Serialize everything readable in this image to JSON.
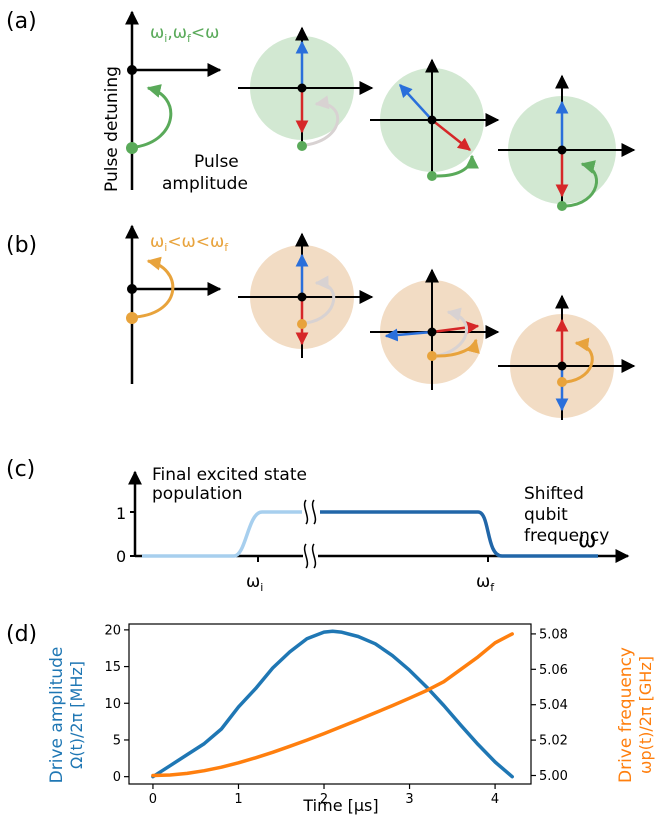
{
  "panels": {
    "a": {
      "label": "(a)",
      "condition": {
        "w1": "ω",
        "s1": "i",
        "sep": ",",
        "w2": "ω",
        "s2": "f",
        "rel": "<ω"
      },
      "ylabel": "Pulse detuning",
      "xlabel_line1": "Pulse",
      "xlabel_line2": "amplitude",
      "color": "#5aaa5a",
      "disc": "#d2e8d2"
    },
    "b": {
      "label": "(b)",
      "condition": {
        "w1": "ω",
        "s1": "i",
        "mid": "<ω<",
        "w2": "ω",
        "s2": "f"
      },
      "color": "#e8a33c",
      "disc": "#f2dcc4"
    },
    "c": {
      "label": "(c)",
      "title_line1": "Final excited state",
      "title_line2": "population",
      "note_line1": "Shifted",
      "note_line2": "qubit",
      "note_line3": "frequency",
      "axis_symbol": "ω",
      "ytick_1": "1",
      "ytick_0": "0",
      "xtick_i": {
        "w": "ω",
        "s": "i"
      },
      "xtick_f": {
        "w": "ω",
        "s": "f"
      }
    },
    "d": {
      "label": "(d)",
      "ylabel_left_line1": "Drive amplitude",
      "ylabel_left_line2": "Ω(t)/2π [MHz]",
      "ylabel_right_line1": "Drive frequency",
      "ylabel_right_line2": "ωp(t)/2π [GHz]",
      "xlabel": "Time [μs]"
    }
  },
  "chart_data": {
    "type": "line",
    "xlabel": "Time [μs]",
    "ylabel": "Ω(t)/2π [MHz]",
    "ylabel_right": "ωp(t)/2π [GHz]",
    "xlim": [
      -0.28,
      4.42
    ],
    "ylim": [
      -1,
      20.8
    ],
    "ylim_right": [
      4.9952,
      5.0856
    ],
    "xticks": [
      0,
      1,
      2,
      3,
      4
    ],
    "yticks_left": [
      0,
      5,
      10,
      15,
      20
    ],
    "yticks_right": [
      5.0,
      5.02,
      5.04,
      5.06,
      5.08
    ],
    "series": [
      {
        "axis": "left",
        "color": "#1f77b4",
        "x": [
          0,
          0.2,
          0.4,
          0.6,
          0.8,
          1.0,
          1.2,
          1.4,
          1.6,
          1.8,
          2.0,
          2.1,
          2.2,
          2.4,
          2.6,
          2.8,
          3.0,
          3.2,
          3.4,
          3.6,
          3.8,
          4.0,
          4.2
        ],
        "y": [
          0,
          1.5,
          3.0,
          4.5,
          6.5,
          9.5,
          12.0,
          14.8,
          17.0,
          18.8,
          19.7,
          19.8,
          19.7,
          19.1,
          18.1,
          16.5,
          14.5,
          12.2,
          9.7,
          7.0,
          4.4,
          2.0,
          0
        ]
      },
      {
        "axis": "right",
        "color": "#ff7f0e",
        "x": [
          0,
          0.2,
          0.4,
          0.6,
          0.8,
          1.0,
          1.2,
          1.4,
          1.6,
          1.8,
          2.0,
          2.2,
          2.4,
          2.6,
          2.8,
          3.0,
          3.2,
          3.4,
          3.6,
          3.8,
          4.0,
          4.2
        ],
        "y": [
          5.0,
          5.0003,
          5.0012,
          5.0027,
          5.0047,
          5.0072,
          5.01,
          5.0131,
          5.0165,
          5.02,
          5.0237,
          5.0276,
          5.0314,
          5.0354,
          5.0395,
          5.0437,
          5.048,
          5.053,
          5.06,
          5.067,
          5.075,
          5.08
        ]
      }
    ]
  }
}
